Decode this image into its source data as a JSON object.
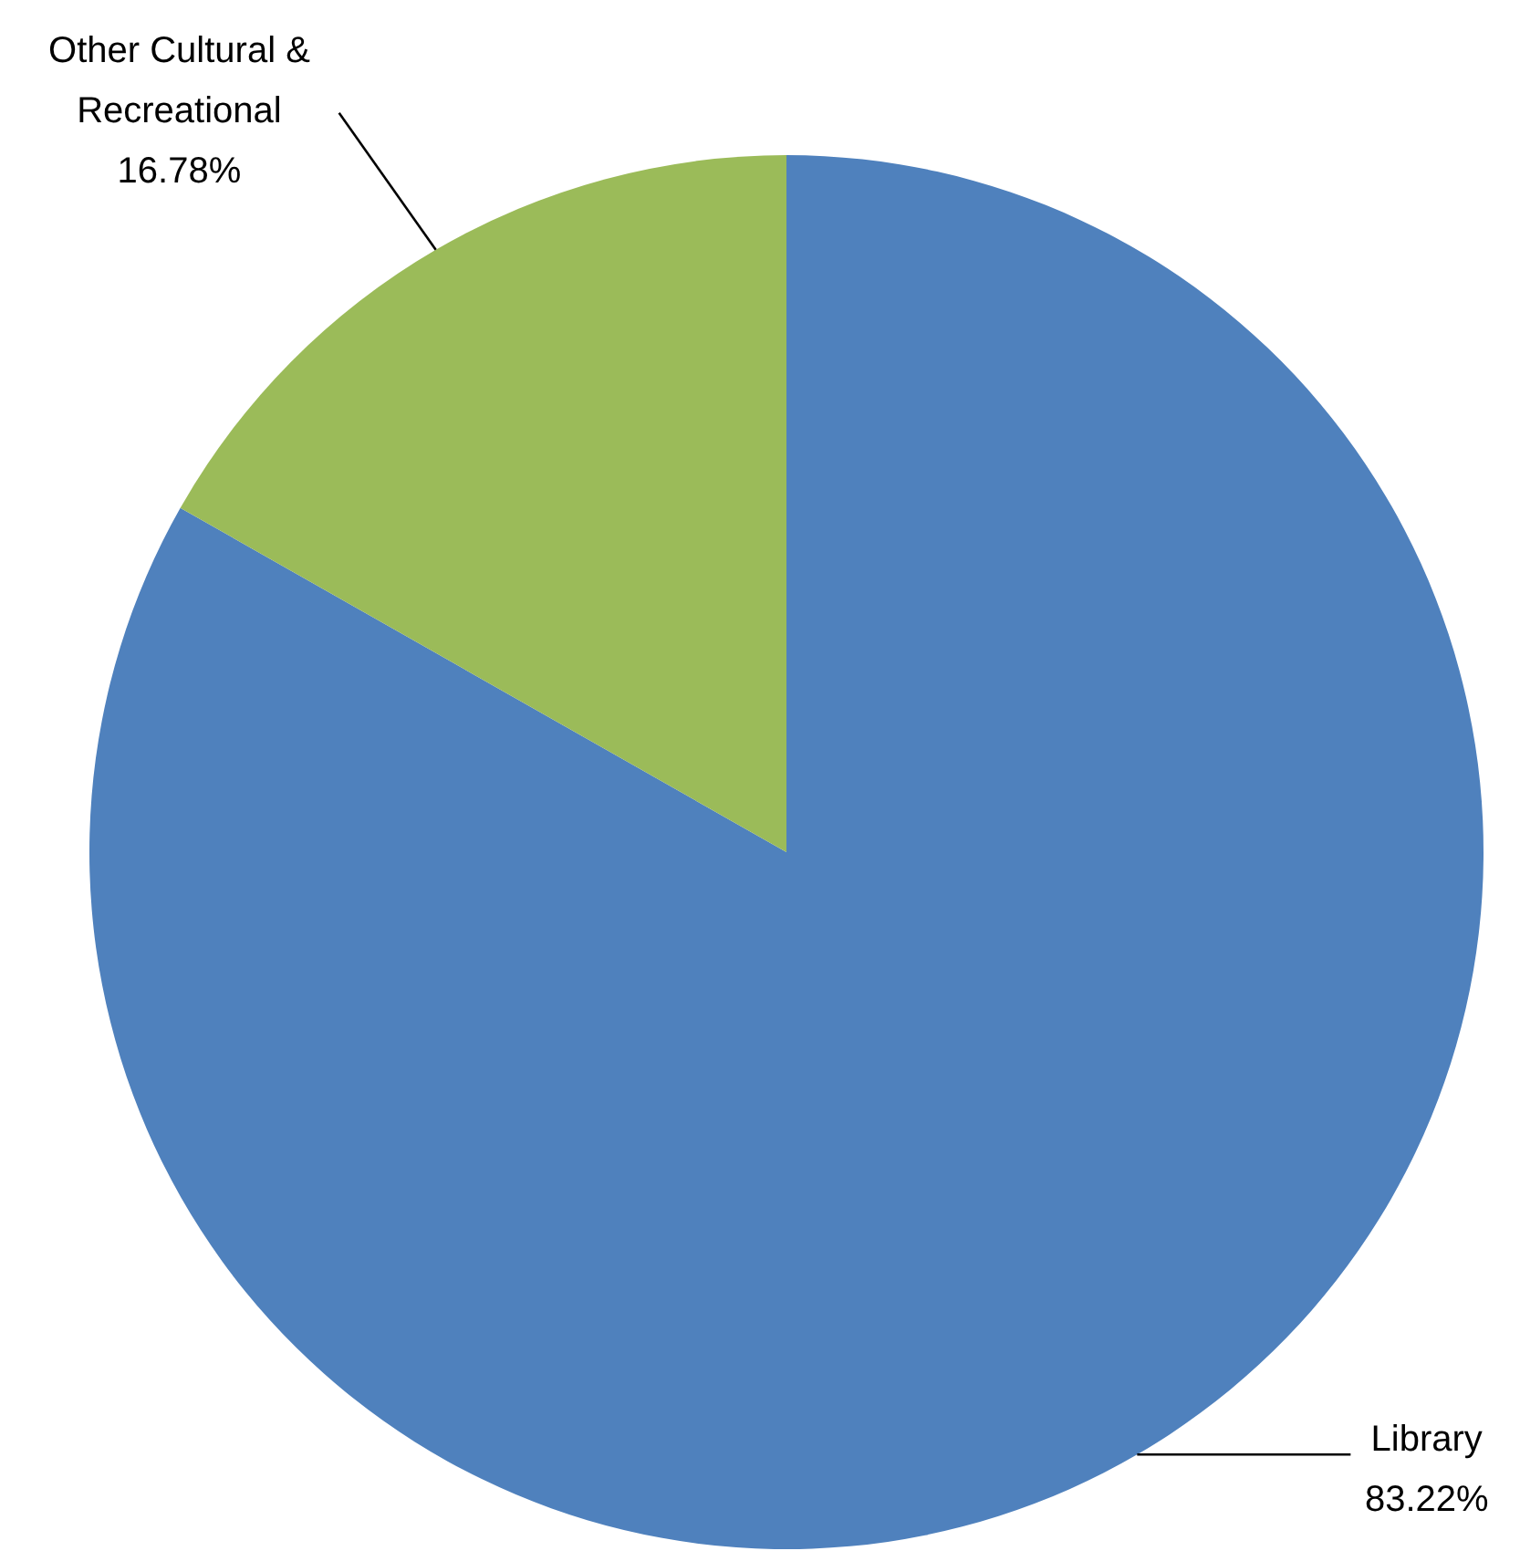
{
  "chart_data": {
    "type": "pie",
    "categories": [
      "Library",
      "Other Cultural & Recreational"
    ],
    "values": [
      83.22,
      16.78
    ],
    "value_labels": [
      "83.22%",
      "16.78%"
    ],
    "colors": [
      "#4f81bd",
      "#9bbb59"
    ]
  }
}
